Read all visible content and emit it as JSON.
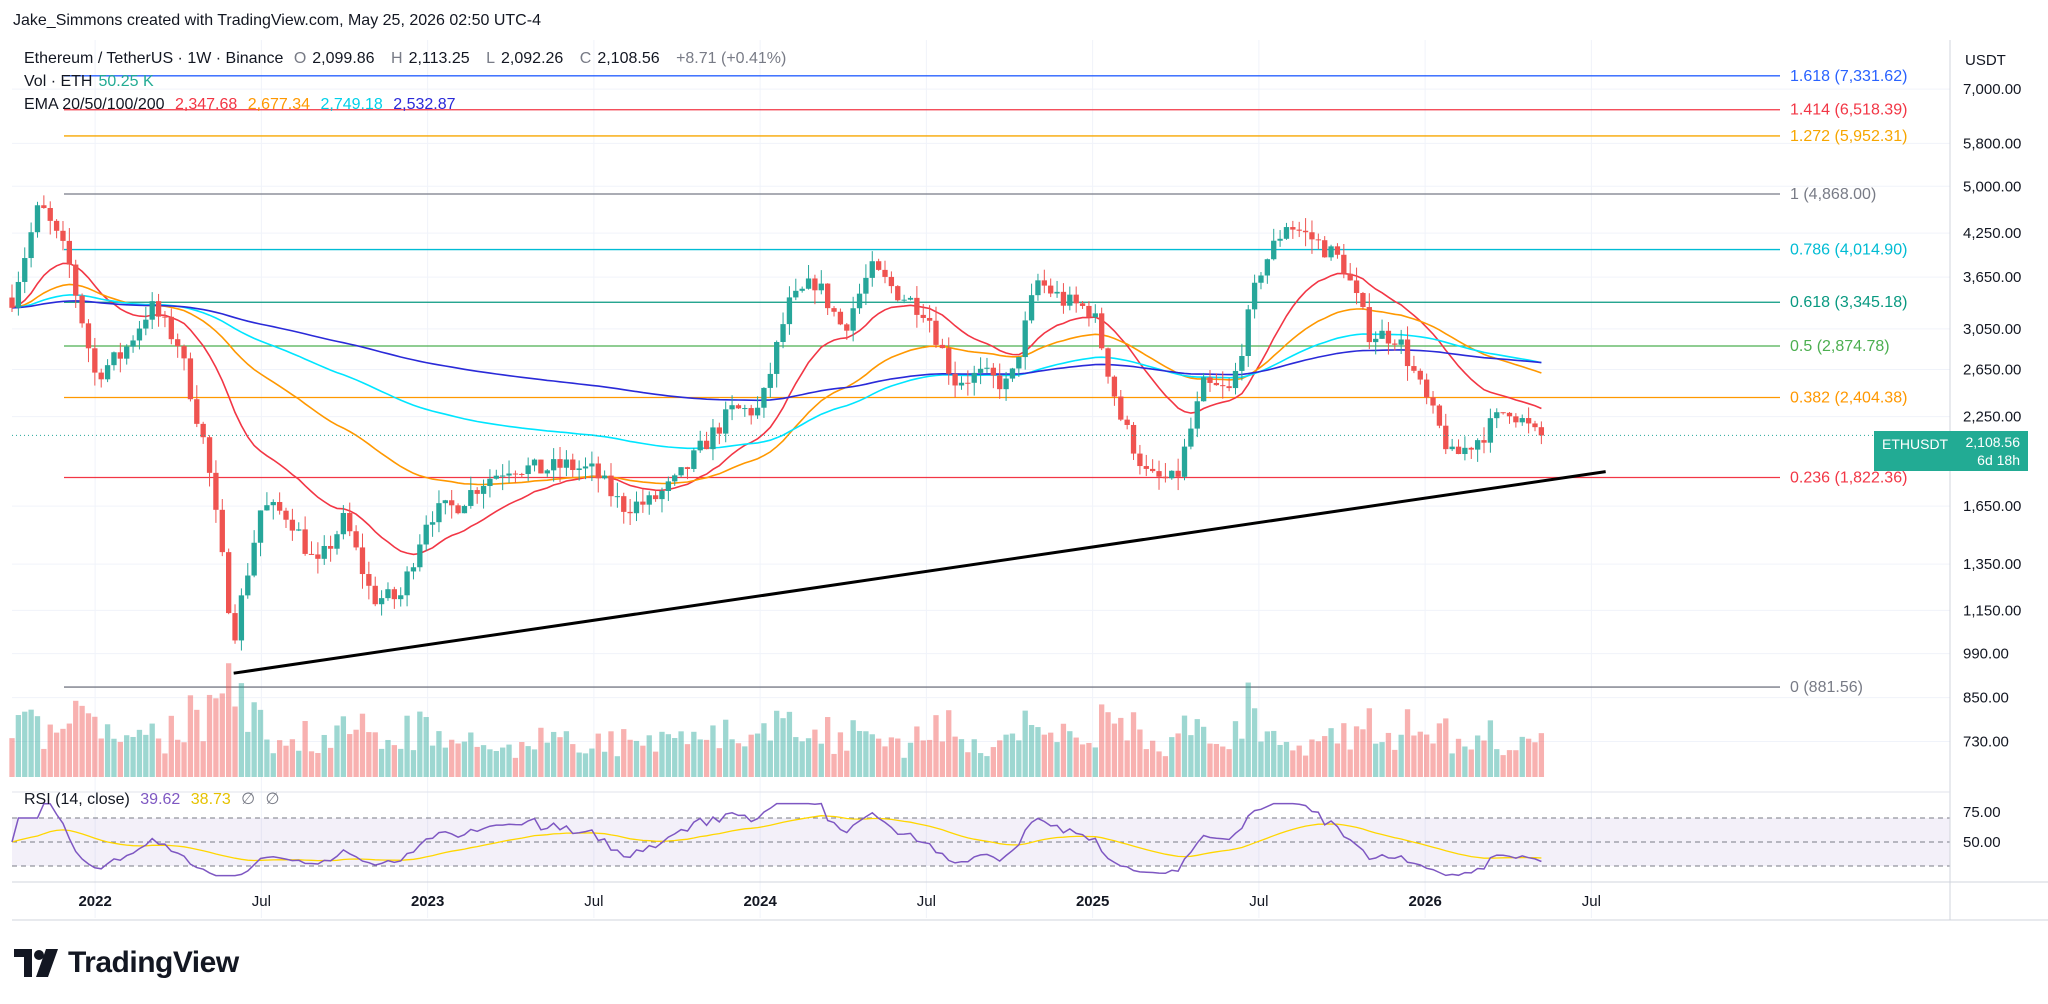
{
  "header": {
    "credit": "Jake_Simmons created with TradingView.com, May 25, 2026 02:50 UTC-4"
  },
  "legend": {
    "symbol": "Ethereum / TetherUS · 1W · Binance",
    "o_label": "O",
    "o": "2,099.86",
    "h_label": "H",
    "h": "2,113.25",
    "l_label": "L",
    "l": "2,092.26",
    "c_label": "C",
    "c": "2,108.56",
    "change": "+8.71 (+0.41%)",
    "vol_label": "Vol · ETH",
    "vol": "50.25 K",
    "ema_label": "EMA 20/50/100/200",
    "ema20": "2,347.68",
    "ema50": "2,677.34",
    "ema100": "2,749.18",
    "ema200": "2,532.87",
    "rsi_label": "RSI (14, close)",
    "rsi": "39.62",
    "rsi_ma": "38.73",
    "rsi_extra1": "∅",
    "rsi_extra2": "∅"
  },
  "price_tag": {
    "symbol": "ETHUSDT",
    "price": "2,108.56",
    "countdown": "6d 18h"
  },
  "axis_currency": "USDT",
  "colors": {
    "up": "#26a69a",
    "down": "#ef5350",
    "ema20": "#f23645",
    "ema50": "#ff9800",
    "ema100": "#00e5ff",
    "ema200": "#2a2ad8",
    "rsi": "#7e57c2",
    "rsi_ma": "#ffd600",
    "trend": "#000000"
  },
  "chart_data": {
    "type": "candlestick",
    "scale": "log",
    "ylim": [
      650,
      8300
    ],
    "y_ticks": [
      7000,
      5800,
      5000,
      4250,
      3650,
      3050,
      2650,
      2250,
      1650,
      1350,
      1150,
      990,
      850,
      730
    ],
    "y_tick_labels": [
      "7,000.00",
      "5,800.00",
      "5,000.00",
      "4,250.00",
      "3,650.00",
      "3,050.00",
      "2,650.00",
      "2,250.00",
      "1,650.00",
      "1,350.00",
      "1,150.00",
      "990.00",
      "850.00",
      "730.00"
    ],
    "x_labels": [
      "2022",
      "Jul",
      "2023",
      "Jul",
      "2024",
      "Jul",
      "2025",
      "Jul",
      "2026",
      "Jul"
    ],
    "x_dates": [
      "2022-01",
      "2022-07",
      "2023-01",
      "2023-07",
      "2024-01",
      "2024-07",
      "2025-01",
      "2025-07",
      "2026-01",
      "2026-07"
    ],
    "fib_levels": [
      {
        "label": "1.618 (7,331.62)",
        "ratio": 1.618,
        "price": 7331.62,
        "color": "#2962ff"
      },
      {
        "label": "1.414 (6,518.39)",
        "ratio": 1.414,
        "price": 6518.39,
        "color": "#f23645"
      },
      {
        "label": "1.272 (5,952.31)",
        "ratio": 1.272,
        "price": 5952.31,
        "color": "#f7a600"
      },
      {
        "label": "1 (4,868.00)",
        "ratio": 1,
        "price": 4868.0,
        "color": "#787b86"
      },
      {
        "label": "0.786 (4,014.90)",
        "ratio": 0.786,
        "price": 4014.9,
        "color": "#00bcd4"
      },
      {
        "label": "0.618 (3,345.18)",
        "ratio": 0.618,
        "price": 3345.18,
        "color": "#089981"
      },
      {
        "label": "0.5 (2,874.78)",
        "ratio": 0.5,
        "price": 2874.78,
        "color": "#4caf50"
      },
      {
        "label": "0.382 (2,404.38)",
        "ratio": 0.382,
        "price": 2404.38,
        "color": "#ff9800"
      },
      {
        "label": "0.236 (1,822.36)",
        "ratio": 0.236,
        "price": 1822.36,
        "color": "#f23645"
      },
      {
        "label": "0 (881.56)",
        "ratio": 0,
        "price": 881.56,
        "color": "#787b86"
      }
    ],
    "trendline": {
      "from": {
        "date": "2022-06",
        "price": 925
      },
      "to": {
        "date": "2026-06",
        "price": 1860
      }
    },
    "last_price": 2108.56,
    "close_path": [
      [
        "2021-10",
        3400
      ],
      [
        "2021-11",
        4700
      ],
      [
        "2021-12",
        3900
      ],
      [
        "2022-01",
        2600
      ],
      [
        "2022-02",
        2800
      ],
      [
        "2022-03",
        3300
      ],
      [
        "2022-04",
        2900
      ],
      [
        "2022-05",
        2000
      ],
      [
        "2022-06",
        1050
      ],
      [
        "2022-07",
        1650
      ],
      [
        "2022-08",
        1600
      ],
      [
        "2022-09",
        1330
      ],
      [
        "2022-10",
        1580
      ],
      [
        "2022-11",
        1200
      ],
      [
        "2022-12",
        1200
      ],
      [
        "2023-01",
        1600
      ],
      [
        "2023-02",
        1650
      ],
      [
        "2023-03",
        1800
      ],
      [
        "2023-04",
        1900
      ],
      [
        "2023-05",
        1870
      ],
      [
        "2023-06",
        1900
      ],
      [
        "2023-07",
        1860
      ],
      [
        "2023-08",
        1650
      ],
      [
        "2023-09",
        1670
      ],
      [
        "2023-10",
        1800
      ],
      [
        "2023-11",
        2050
      ],
      [
        "2023-12",
        2300
      ],
      [
        "2024-01",
        2300
      ],
      [
        "2024-02",
        3300
      ],
      [
        "2024-03",
        3600
      ],
      [
        "2024-04",
        3050
      ],
      [
        "2024-05",
        3750
      ],
      [
        "2024-06",
        3450
      ],
      [
        "2024-07",
        3250
      ],
      [
        "2024-08",
        2550
      ],
      [
        "2024-09",
        2600
      ],
      [
        "2024-10",
        2500
      ],
      [
        "2024-11",
        3600
      ],
      [
        "2024-12",
        3350
      ],
      [
        "2025-01",
        3250
      ],
      [
        "2025-02",
        2250
      ],
      [
        "2025-03",
        1820
      ],
      [
        "2025-04",
        1800
      ],
      [
        "2025-05",
        2500
      ],
      [
        "2025-06",
        2450
      ],
      [
        "2025-07",
        3700
      ],
      [
        "2025-08",
        4400
      ],
      [
        "2025-09",
        4150
      ],
      [
        "2025-10",
        3850
      ],
      [
        "2025-11",
        3000
      ],
      [
        "2025-12",
        2970
      ],
      [
        "2026-01",
        2400
      ],
      [
        "2026-02",
        1950
      ],
      [
        "2026-03",
        2100
      ],
      [
        "2026-04",
        2330
      ],
      [
        "2026-05",
        2108.56
      ]
    ]
  }
}
